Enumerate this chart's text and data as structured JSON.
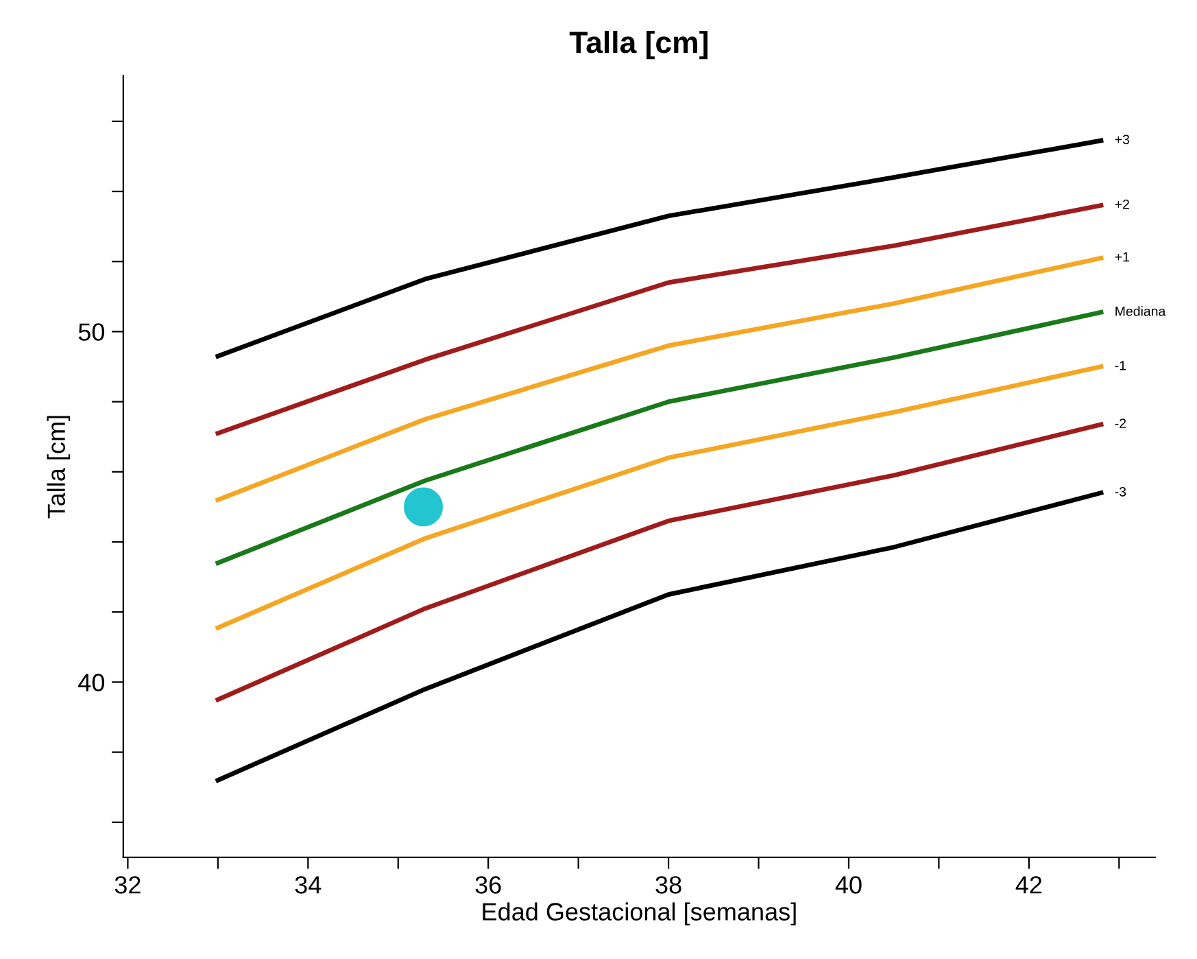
{
  "chart_data": {
    "type": "line",
    "title": "Talla [cm]",
    "xlabel": "Edad Gestacional [semanas]",
    "ylabel": "Talla [cm]",
    "x": [
      33,
      35.3,
      38,
      40.5,
      42.8
    ],
    "series": [
      {
        "name": "+3",
        "color": "#000000",
        "values": [
          49.3,
          51.5,
          53.3,
          54.4,
          55.45
        ]
      },
      {
        "name": "+2",
        "color": "#a01c1c",
        "values": [
          47.1,
          49.2,
          51.4,
          52.45,
          53.6
        ]
      },
      {
        "name": "+1",
        "color": "#f5a623",
        "values": [
          45.2,
          47.5,
          49.6,
          50.8,
          52.1
        ]
      },
      {
        "name": "Mediana",
        "color": "#1a7a1a",
        "values": [
          43.4,
          45.75,
          48.0,
          49.26,
          50.55
        ]
      },
      {
        "name": "-1",
        "color": "#f5a623",
        "values": [
          41.55,
          44.1,
          46.4,
          47.7,
          49.0
        ]
      },
      {
        "name": "-2",
        "color": "#a01c1c",
        "values": [
          39.5,
          42.1,
          44.6,
          45.9,
          47.35
        ]
      },
      {
        "name": "-3",
        "color": "#000000",
        "values": [
          37.2,
          39.8,
          42.5,
          43.85,
          45.4
        ]
      },
      {
        "type": "scatter",
        "color": "#22c5d0",
        "x": [
          35.28
        ],
        "values": [
          45.0
        ],
        "marker": "circle"
      }
    ],
    "xlim": [
      31.95,
      43.4
    ],
    "ylim": [
      35.0,
      57.3
    ],
    "xticks": [
      32,
      {
        "value": 33,
        "label": null
      },
      34,
      {
        "value": 35,
        "label": null
      },
      36,
      {
        "value": 37,
        "label": null
      },
      38,
      {
        "value": 39,
        "label": null
      },
      40,
      {
        "value": 41,
        "label": null
      },
      42,
      {
        "value": 43,
        "label": null
      }
    ],
    "yticks": [
      {
        "value": 36,
        "label": null
      },
      {
        "value": 38,
        "label": null
      },
      40,
      {
        "value": 42,
        "label": null
      },
      {
        "value": 44,
        "label": null
      },
      {
        "value": 46,
        "label": null
      },
      {
        "value": 48,
        "label": null
      },
      50,
      {
        "value": 52,
        "label": null
      },
      {
        "value": 54,
        "label": null
      },
      {
        "value": 56,
        "label": null
      }
    ],
    "grid": false,
    "legend": false,
    "marker": "none",
    "line_style": "solid"
  }
}
